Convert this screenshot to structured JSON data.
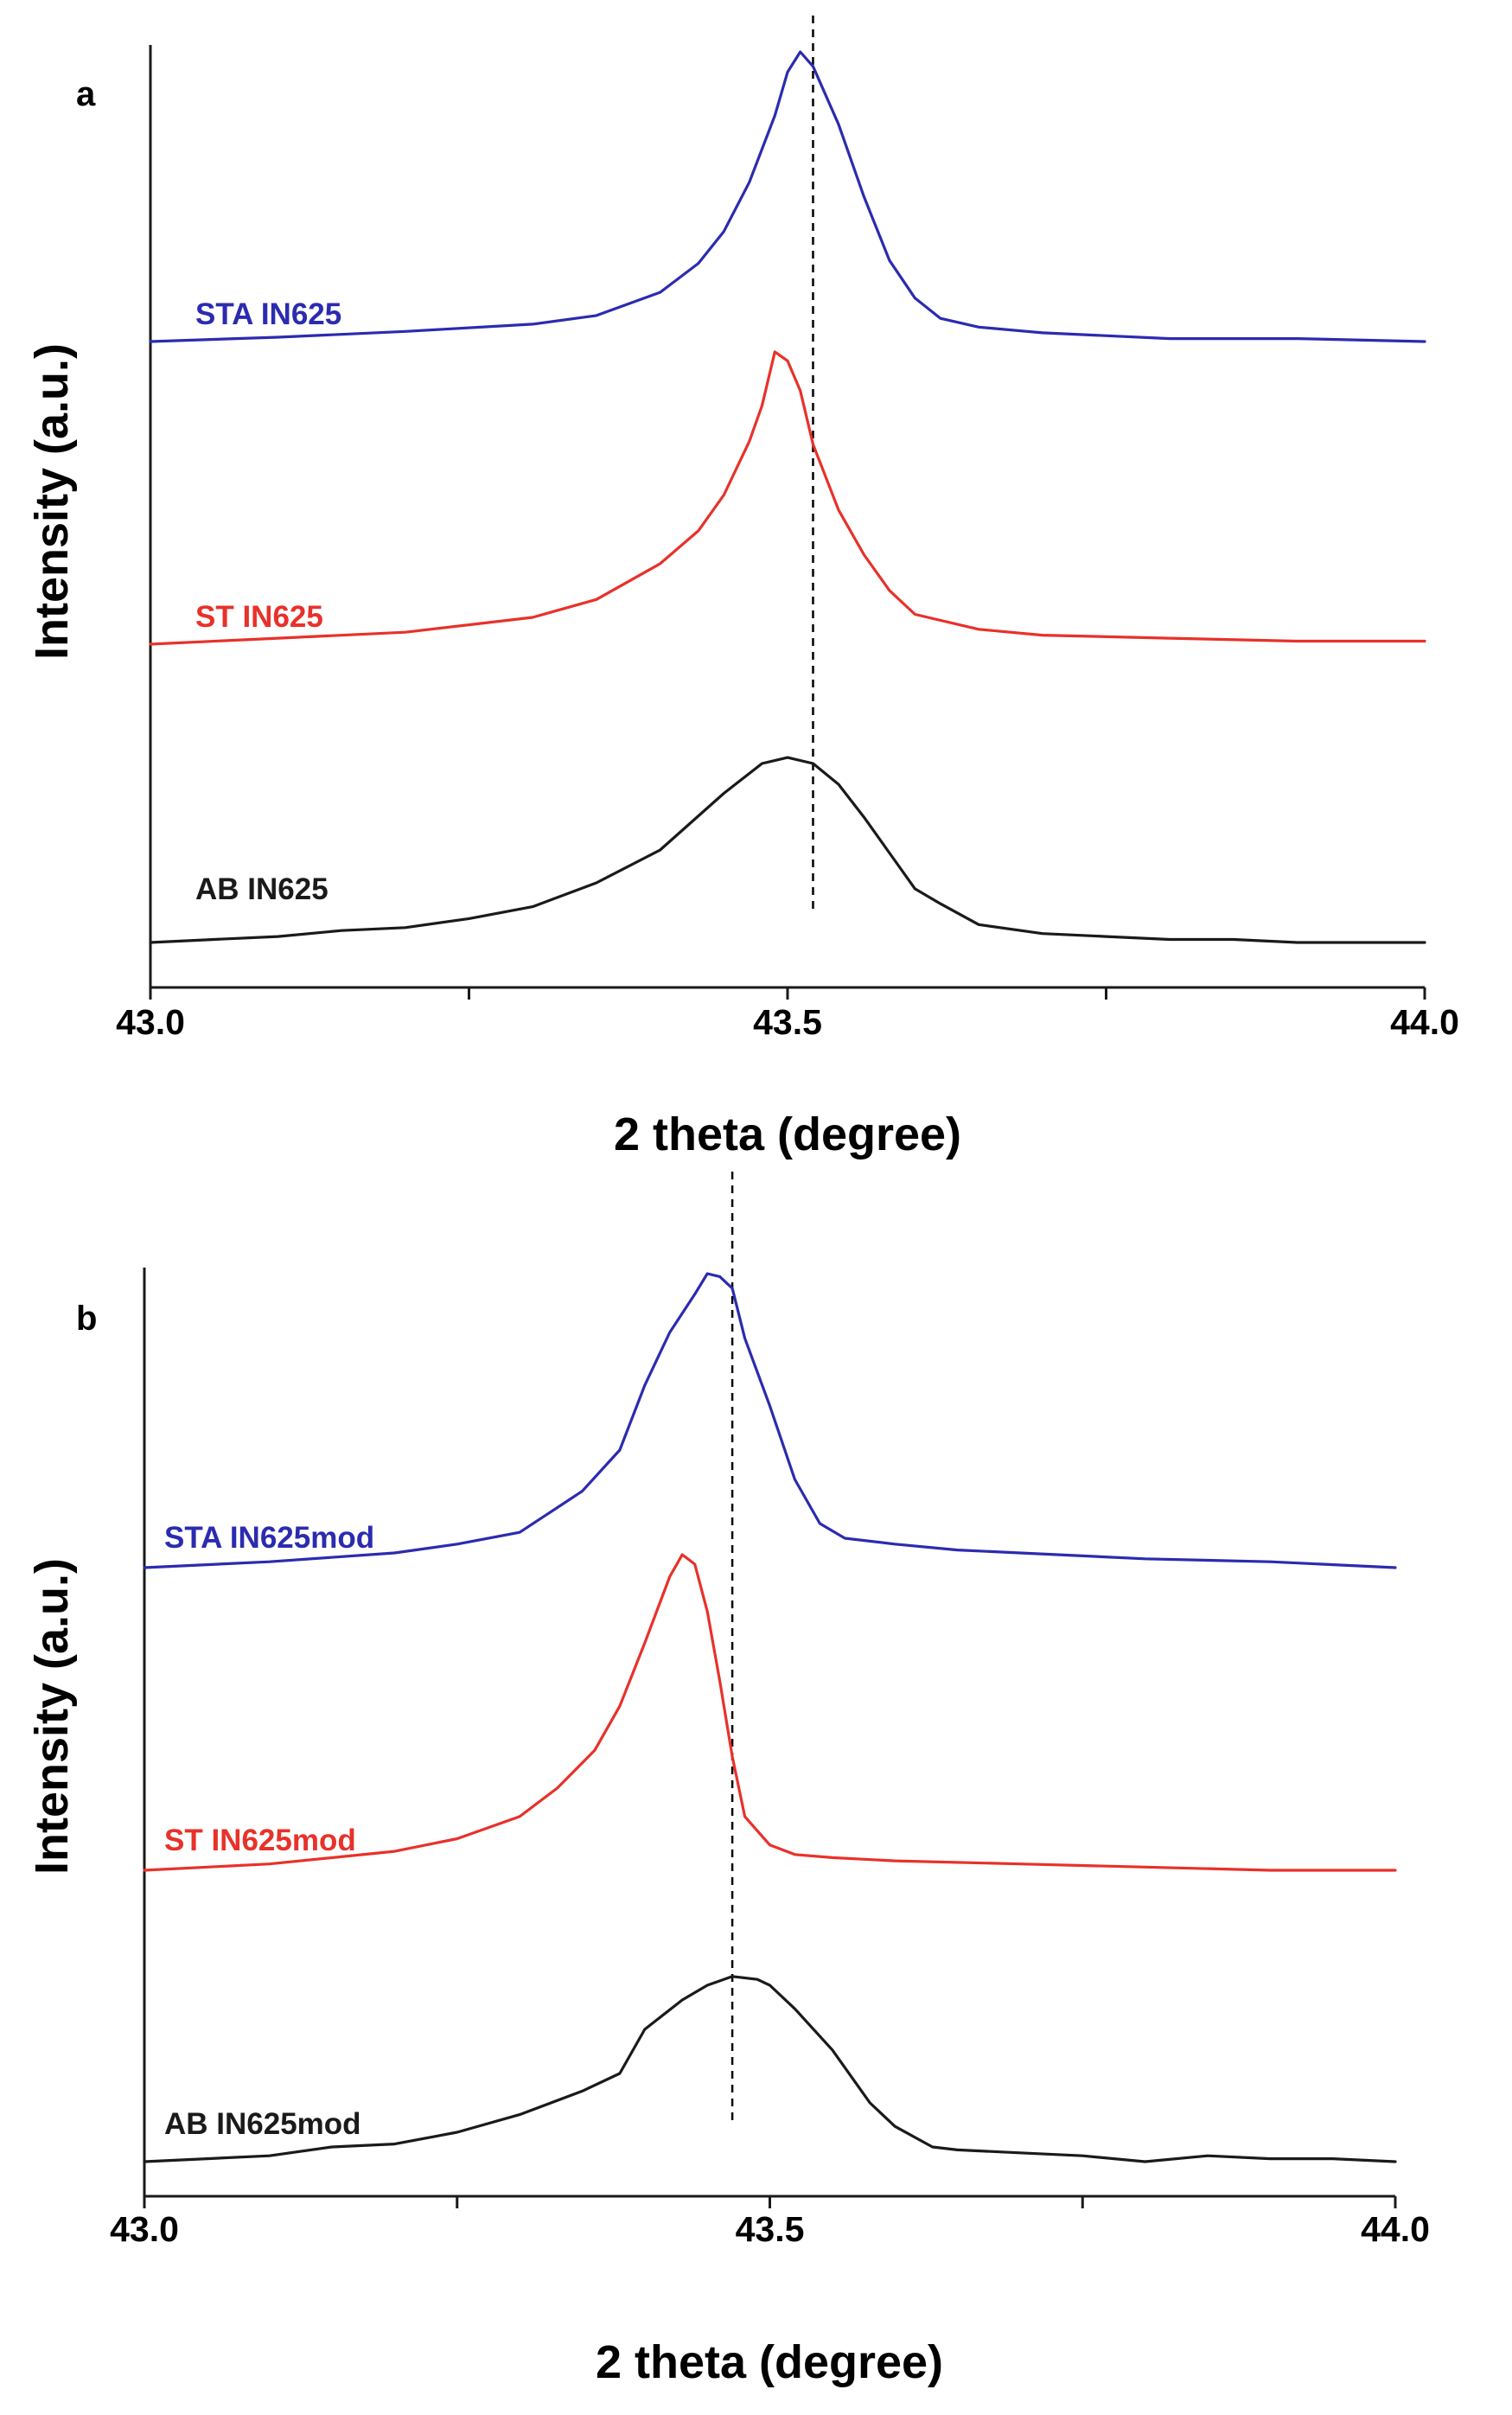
{
  "figure": {
    "colors": {
      "blue": "#2b2bb0",
      "red": "#e8312a",
      "black": "#1a1a1a"
    }
  },
  "chart_data": [
    {
      "type": "line",
      "panel_label": "a",
      "xlabel": "2 theta (degree)",
      "ylabel": "Intensity (a.u.)",
      "xlim": [
        43.0,
        44.0
      ],
      "x_ticks": [
        43.0,
        43.25,
        43.5,
        43.75,
        44.0
      ],
      "x_tick_labels": [
        "43.0",
        "",
        "43.5",
        "",
        "44.0"
      ],
      "reference_line_x": 43.52,
      "series": [
        {
          "name": "STA IN625",
          "color": "#2b2bb0",
          "offset": 1.25,
          "x": [
            43.0,
            43.1,
            43.2,
            43.3,
            43.35,
            43.4,
            43.43,
            43.45,
            43.47,
            43.49,
            43.5,
            43.51,
            43.52,
            43.54,
            43.56,
            43.58,
            43.6,
            43.62,
            43.65,
            43.7,
            43.8,
            43.9,
            44.0
          ],
          "values": [
            0.0,
            0.015,
            0.035,
            0.06,
            0.09,
            0.17,
            0.27,
            0.38,
            0.55,
            0.78,
            0.93,
            1.0,
            0.95,
            0.75,
            0.5,
            0.28,
            0.15,
            0.08,
            0.05,
            0.03,
            0.01,
            0.01,
            0.0
          ]
        },
        {
          "name": "ST IN625",
          "color": "#e8312a",
          "offset": 0.625,
          "x": [
            43.0,
            43.1,
            43.2,
            43.3,
            43.35,
            43.4,
            43.43,
            43.45,
            43.47,
            43.48,
            43.49,
            43.5,
            43.51,
            43.52,
            43.54,
            43.56,
            43.58,
            43.6,
            43.65,
            43.7,
            43.8,
            43.9,
            44.0
          ],
          "values": [
            0.0,
            0.02,
            0.04,
            0.09,
            0.15,
            0.27,
            0.38,
            0.5,
            0.68,
            0.8,
            0.98,
            0.95,
            0.85,
            0.67,
            0.45,
            0.3,
            0.18,
            0.1,
            0.05,
            0.03,
            0.02,
            0.01,
            0.01
          ]
        },
        {
          "name": "AB IN625",
          "color": "#1a1a1a",
          "offset": 0.0,
          "x": [
            43.0,
            43.05,
            43.1,
            43.15,
            43.2,
            43.25,
            43.3,
            43.35,
            43.4,
            43.45,
            43.48,
            43.5,
            43.52,
            43.54,
            43.56,
            43.58,
            43.6,
            43.62,
            43.65,
            43.7,
            43.75,
            43.8,
            43.85,
            43.9,
            43.95,
            44.0
          ],
          "values": [
            0.0,
            0.01,
            0.02,
            0.04,
            0.05,
            0.08,
            0.12,
            0.2,
            0.31,
            0.5,
            0.6,
            0.62,
            0.6,
            0.53,
            0.42,
            0.3,
            0.18,
            0.13,
            0.06,
            0.03,
            0.02,
            0.01,
            0.01,
            0.0,
            0.0,
            0.0
          ]
        }
      ]
    },
    {
      "type": "line",
      "panel_label": "b",
      "xlabel": "2 theta (degree)",
      "ylabel": "Intensity (a.u.)",
      "xlim": [
        43.0,
        44.0
      ],
      "x_ticks": [
        43.0,
        43.25,
        43.5,
        43.75,
        44.0
      ],
      "x_tick_labels": [
        "43.0",
        "",
        "43.5",
        "",
        "44.0"
      ],
      "reference_line_x": 43.47,
      "series": [
        {
          "name": "STA IN625mod",
          "color": "#2b2bb0",
          "offset": 1.25,
          "x": [
            43.0,
            43.1,
            43.2,
            43.25,
            43.3,
            43.35,
            43.38,
            43.4,
            43.42,
            43.44,
            43.45,
            43.46,
            43.47,
            43.48,
            43.5,
            43.52,
            43.54,
            43.56,
            43.6,
            43.65,
            43.7,
            43.8,
            43.9,
            44.0
          ],
          "values": [
            0.0,
            0.02,
            0.05,
            0.08,
            0.12,
            0.26,
            0.4,
            0.62,
            0.8,
            0.93,
            1.0,
            0.99,
            0.95,
            0.78,
            0.55,
            0.3,
            0.15,
            0.1,
            0.08,
            0.06,
            0.05,
            0.03,
            0.02,
            0.0
          ]
        },
        {
          "name": "ST IN625mod",
          "color": "#e8312a",
          "offset": 0.625,
          "x": [
            43.0,
            43.1,
            43.2,
            43.25,
            43.3,
            43.33,
            43.36,
            43.38,
            43.4,
            43.42,
            43.43,
            43.44,
            43.45,
            43.46,
            43.47,
            43.48,
            43.5,
            43.52,
            43.55,
            43.6,
            43.7,
            43.8,
            43.9,
            44.0
          ],
          "values": [
            0.0,
            0.02,
            0.06,
            0.1,
            0.17,
            0.26,
            0.38,
            0.52,
            0.72,
            0.93,
            1.0,
            0.97,
            0.82,
            0.6,
            0.36,
            0.17,
            0.08,
            0.05,
            0.04,
            0.03,
            0.02,
            0.01,
            0.0,
            0.0
          ]
        },
        {
          "name": "AB IN625mod",
          "color": "#1a1a1a",
          "offset": 0.0,
          "x": [
            43.0,
            43.05,
            43.1,
            43.15,
            43.2,
            43.25,
            43.3,
            43.35,
            43.38,
            43.4,
            43.43,
            43.45,
            43.47,
            43.49,
            43.5,
            43.52,
            43.55,
            43.58,
            43.6,
            43.63,
            43.65,
            43.7,
            43.75,
            43.8,
            43.85,
            43.9,
            43.95,
            44.0
          ],
          "values": [
            0.0,
            0.01,
            0.02,
            0.05,
            0.06,
            0.1,
            0.16,
            0.24,
            0.3,
            0.45,
            0.55,
            0.6,
            0.63,
            0.62,
            0.6,
            0.52,
            0.38,
            0.2,
            0.12,
            0.05,
            0.04,
            0.03,
            0.02,
            0.0,
            0.02,
            0.01,
            0.01,
            0.0
          ]
        }
      ]
    }
  ]
}
